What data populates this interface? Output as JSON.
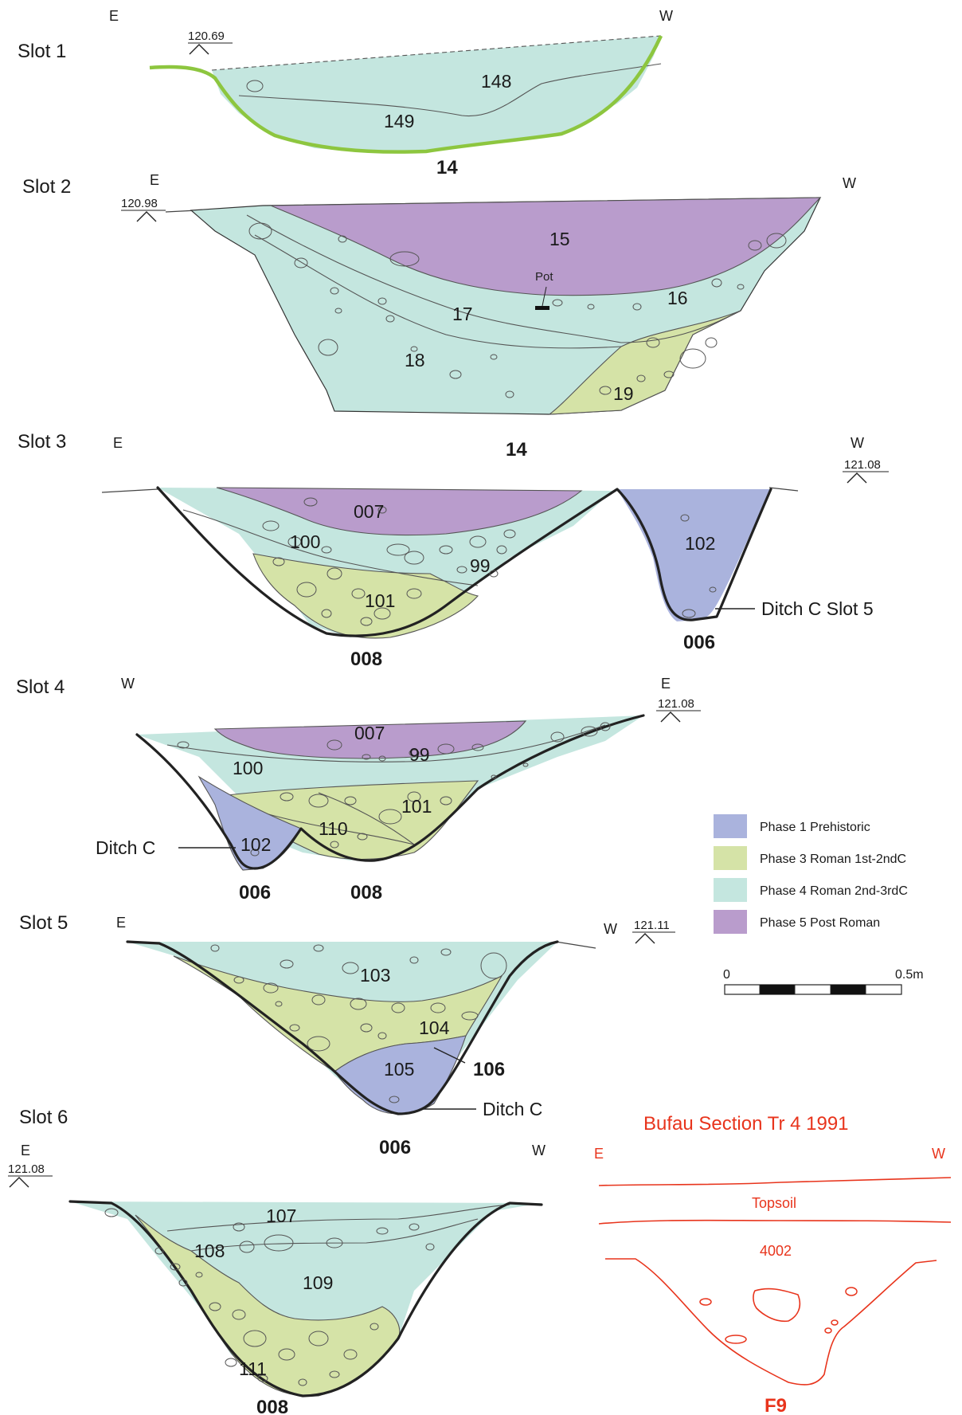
{
  "colors": {
    "phase1": "#aab3dd",
    "phase3": "#d5e3a7",
    "phase4": "#c4e6df",
    "phase5": "#b99ccc",
    "bufau": "#e8341c",
    "slot1_base": "#8dc63f"
  },
  "slots": {
    "s1": {
      "title": "Slot 1",
      "dir_left": "E",
      "dir_right": "W",
      "elevation": "120.69",
      "cut": "14",
      "contexts": [
        "148",
        "149"
      ]
    },
    "s2": {
      "title": "Slot 2",
      "dir_left": "E",
      "dir_right": "W",
      "elevation": "120.98",
      "cut": "14",
      "contexts": [
        "15",
        "16",
        "17",
        "18",
        "19"
      ],
      "find": "Pot"
    },
    "s3": {
      "title": "Slot 3",
      "dir_left": "E",
      "dir_right": "W",
      "elevation": "121.08",
      "cuts": [
        "008",
        "006"
      ],
      "contexts": [
        "007",
        "100",
        "99",
        "101",
        "102"
      ],
      "callout": "Ditch C Slot 5"
    },
    "s4": {
      "title": "Slot 4",
      "dir_left": "W",
      "dir_right": "E",
      "elevation": "121.08",
      "cuts": [
        "006",
        "008"
      ],
      "contexts": [
        "007",
        "99",
        "100",
        "101",
        "110",
        "102"
      ],
      "callout": "Ditch C"
    },
    "s5": {
      "title": "Slot 5",
      "dir_left": "E",
      "dir_right": "W",
      "elevation": "121.11",
      "cuts": [
        "106",
        "006"
      ],
      "contexts": [
        "103",
        "104",
        "105"
      ],
      "callout": "Ditch C"
    },
    "s6": {
      "title": "Slot 6",
      "dir_left": "E",
      "dir_right": "W",
      "elevation": "121.08",
      "cut": "008",
      "contexts": [
        "107",
        "108",
        "109",
        "111"
      ]
    }
  },
  "legend": {
    "items": [
      {
        "label": "Phase 1 Prehistoric",
        "color": "#aab3dd"
      },
      {
        "label": "Phase 3 Roman 1st-2ndC",
        "color": "#d5e3a7"
      },
      {
        "label": "Phase 4 Roman 2nd-3rdC",
        "color": "#c4e6df"
      },
      {
        "label": "Phase 5 Post Roman",
        "color": "#b99ccc"
      }
    ]
  },
  "scale": {
    "start": "0",
    "end": "0.5m"
  },
  "bufau": {
    "title": "Bufau Section Tr 4 1991",
    "dir_left": "E",
    "dir_right": "W",
    "layer_top": "Topsoil",
    "layer_fill": "4002",
    "cut": "F9"
  }
}
